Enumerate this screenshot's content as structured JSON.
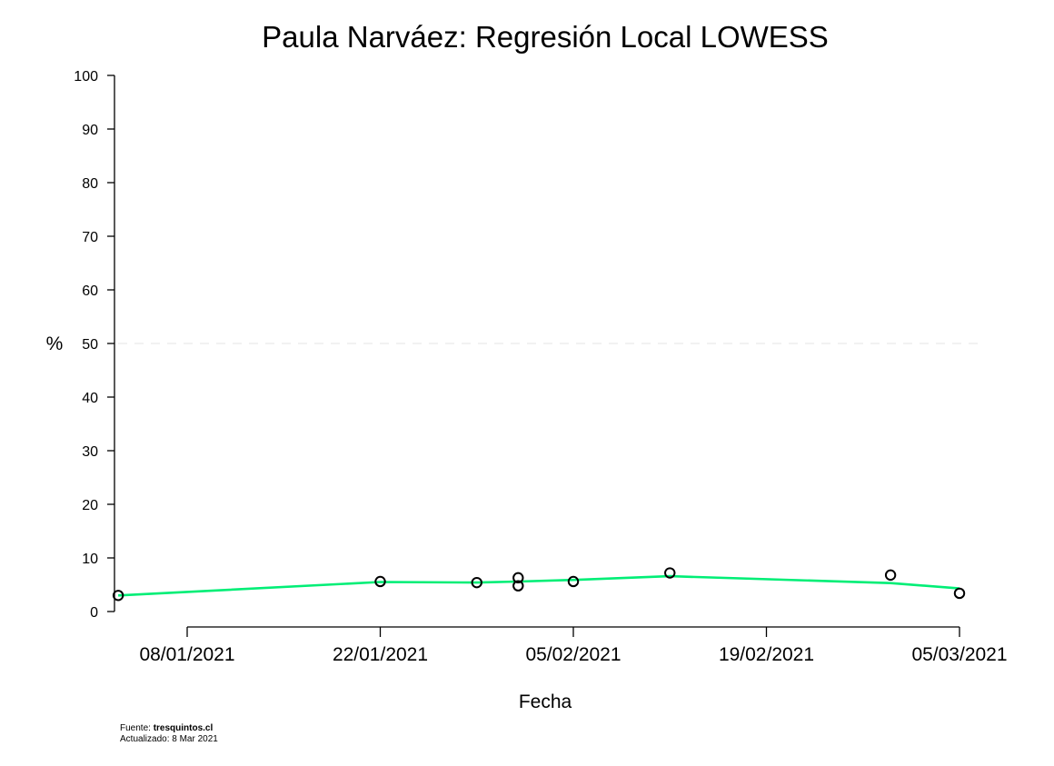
{
  "chart_data": {
    "type": "scatter",
    "title": "Paula Narváez: Regresión Local LOWESS",
    "xlabel": "Fecha",
    "ylabel": "%",
    "ylim": [
      0,
      100
    ],
    "yticks": [
      0,
      10,
      20,
      30,
      40,
      50,
      60,
      70,
      80,
      90,
      100
    ],
    "xlim": [
      "2021-01-02",
      "2021-03-05"
    ],
    "xticks": [
      {
        "date": "2021-01-08",
        "label": "08/01/2021"
      },
      {
        "date": "2021-01-22",
        "label": "22/01/2021"
      },
      {
        "date": "2021-02-05",
        "label": "05/02/2021"
      },
      {
        "date": "2021-02-19",
        "label": "19/02/2021"
      },
      {
        "date": "2021-03-05",
        "label": "05/03/2021"
      }
    ],
    "reference_line": {
      "y": 50,
      "style": "dashed",
      "color": "#e6e6e6"
    },
    "points": [
      {
        "x": "2021-01-03",
        "y": 3.0
      },
      {
        "x": "2021-01-22",
        "y": 5.6
      },
      {
        "x": "2021-01-29",
        "y": 5.4
      },
      {
        "x": "2021-02-01",
        "y": 6.3
      },
      {
        "x": "2021-02-01",
        "y": 4.8
      },
      {
        "x": "2021-02-05",
        "y": 5.6
      },
      {
        "x": "2021-02-12",
        "y": 7.2
      },
      {
        "x": "2021-02-28",
        "y": 6.8
      },
      {
        "x": "2021-03-05",
        "y": 3.4
      }
    ],
    "lowess": [
      {
        "x": "2021-01-03",
        "y": 3.0
      },
      {
        "x": "2021-01-22",
        "y": 5.5
      },
      {
        "x": "2021-01-29",
        "y": 5.4
      },
      {
        "x": "2021-02-01",
        "y": 5.6
      },
      {
        "x": "2021-02-05",
        "y": 5.9
      },
      {
        "x": "2021-02-12",
        "y": 6.6
      },
      {
        "x": "2021-02-28",
        "y": 5.3
      },
      {
        "x": "2021-03-05",
        "y": 4.3
      }
    ],
    "line_color": "#00ee76",
    "point_color": "#000000",
    "grid": false,
    "legend": "none"
  },
  "footer": {
    "source_label": "Fuente: ",
    "source_name": "tresquintos.cl",
    "updated": "Actualizado: 8 Mar 2021"
  }
}
